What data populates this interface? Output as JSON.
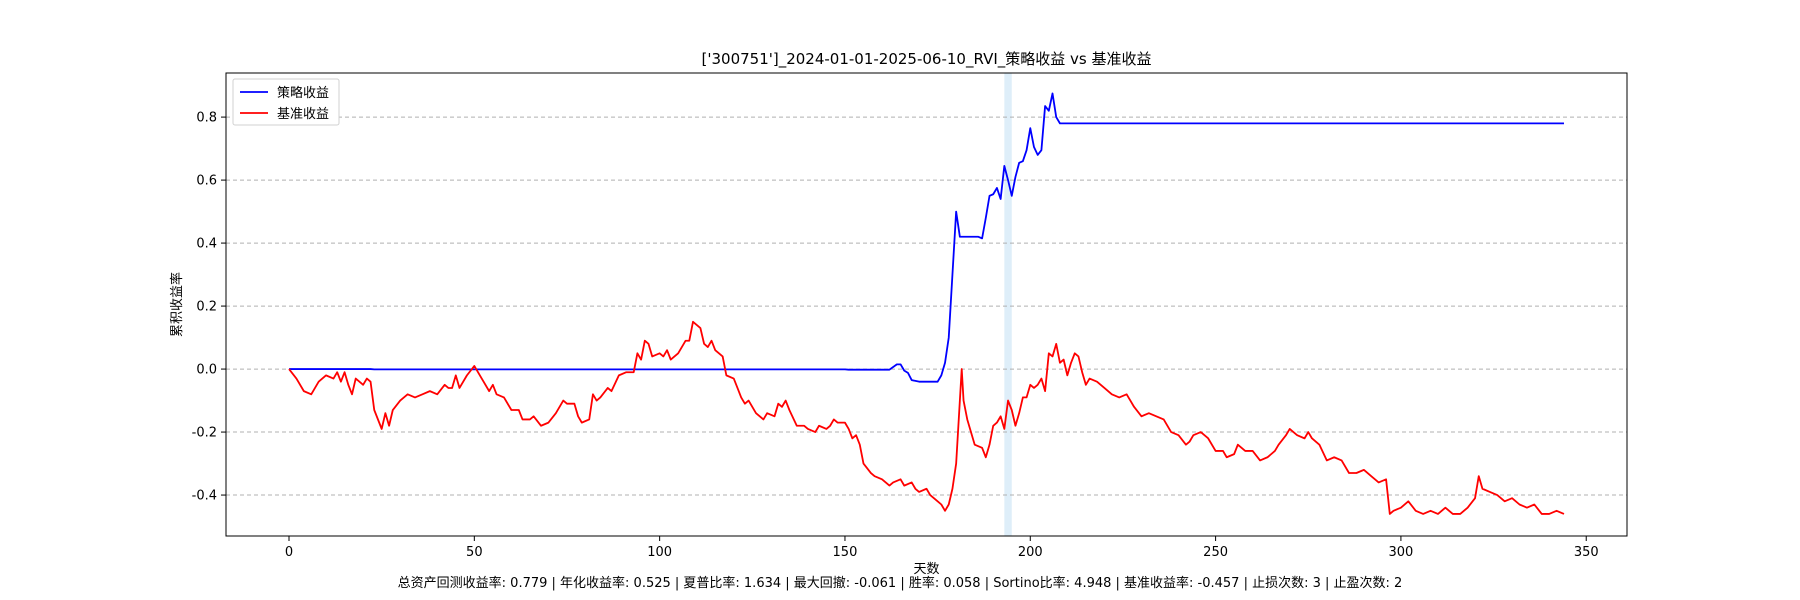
{
  "chart_data": {
    "type": "line",
    "title": "['300751']_2024-01-01-2025-06-10_RVI_策略收益 vs 基准收益",
    "xlabel": "天数",
    "ylabel": "累积收益率",
    "xlim": [
      -17,
      361
    ],
    "ylim": [
      -0.53,
      0.94
    ],
    "xticks": [
      0,
      50,
      100,
      150,
      200,
      250,
      300,
      350
    ],
    "yticks": [
      -0.4,
      -0.2,
      0.0,
      0.2,
      0.4,
      0.6,
      0.8
    ],
    "ytick_labels": [
      "-0.4",
      "-0.2",
      "0.0",
      "0.2",
      "0.4",
      "0.6",
      "0.8"
    ],
    "grid": "y-dashed",
    "legend": "upper-left",
    "highlight_band": {
      "x_start": 193,
      "x_end": 195,
      "color": "#d6eaf8"
    },
    "series": [
      {
        "name": "策略收益",
        "color": "#0000ff",
        "points": [
          [
            0,
            0
          ],
          [
            22,
            0
          ],
          [
            23,
            -0.001
          ],
          [
            150,
            -0.001
          ],
          [
            151,
            -0.002
          ],
          [
            162,
            -0.002
          ],
          [
            164,
            0.015
          ],
          [
            165,
            0.015
          ],
          [
            166,
            -0.005
          ],
          [
            167,
            -0.012
          ],
          [
            168,
            -0.035
          ],
          [
            170,
            -0.04
          ],
          [
            174,
            -0.04
          ],
          [
            175,
            -0.04
          ],
          [
            176,
            -0.02
          ],
          [
            177,
            0.02
          ],
          [
            178,
            0.1
          ],
          [
            179,
            0.3
          ],
          [
            180,
            0.5
          ],
          [
            181,
            0.42
          ],
          [
            186,
            0.42
          ],
          [
            187,
            0.415
          ],
          [
            188,
            0.48
          ],
          [
            189,
            0.55
          ],
          [
            190,
            0.555
          ],
          [
            191,
            0.575
          ],
          [
            192,
            0.54
          ],
          [
            193,
            0.645
          ],
          [
            194,
            0.6
          ],
          [
            195,
            0.55
          ],
          [
            196,
            0.61
          ],
          [
            197,
            0.655
          ],
          [
            198,
            0.66
          ],
          [
            199,
            0.695
          ],
          [
            200,
            0.765
          ],
          [
            201,
            0.705
          ],
          [
            202,
            0.68
          ],
          [
            203,
            0.695
          ],
          [
            204,
            0.835
          ],
          [
            205,
            0.82
          ],
          [
            206,
            0.875
          ],
          [
            207,
            0.8
          ],
          [
            208,
            0.78
          ],
          [
            344,
            0.78
          ]
        ]
      },
      {
        "name": "基准收益",
        "color": "#ff0000",
        "points": [
          [
            0,
            0
          ],
          [
            2,
            -0.03
          ],
          [
            4,
            -0.07
          ],
          [
            6,
            -0.08
          ],
          [
            8,
            -0.04
          ],
          [
            10,
            -0.02
          ],
          [
            12,
            -0.03
          ],
          [
            13,
            -0.01
          ],
          [
            14,
            -0.04
          ],
          [
            15,
            -0.01
          ],
          [
            16,
            -0.05
          ],
          [
            17,
            -0.08
          ],
          [
            18,
            -0.03
          ],
          [
            20,
            -0.05
          ],
          [
            21,
            -0.03
          ],
          [
            22,
            -0.04
          ],
          [
            23,
            -0.13
          ],
          [
            25,
            -0.19
          ],
          [
            26,
            -0.14
          ],
          [
            27,
            -0.18
          ],
          [
            28,
            -0.13
          ],
          [
            30,
            -0.1
          ],
          [
            32,
            -0.08
          ],
          [
            34,
            -0.09
          ],
          [
            36,
            -0.08
          ],
          [
            38,
            -0.07
          ],
          [
            40,
            -0.08
          ],
          [
            42,
            -0.05
          ],
          [
            43,
            -0.06
          ],
          [
            44,
            -0.06
          ],
          [
            45,
            -0.02
          ],
          [
            46,
            -0.06
          ],
          [
            48,
            -0.02
          ],
          [
            50,
            0.01
          ],
          [
            52,
            -0.03
          ],
          [
            54,
            -0.07
          ],
          [
            55,
            -0.05
          ],
          [
            56,
            -0.08
          ],
          [
            58,
            -0.09
          ],
          [
            60,
            -0.13
          ],
          [
            62,
            -0.13
          ],
          [
            63,
            -0.16
          ],
          [
            65,
            -0.16
          ],
          [
            66,
            -0.15
          ],
          [
            68,
            -0.18
          ],
          [
            70,
            -0.17
          ],
          [
            72,
            -0.14
          ],
          [
            74,
            -0.1
          ],
          [
            75,
            -0.11
          ],
          [
            77,
            -0.11
          ],
          [
            78,
            -0.15
          ],
          [
            79,
            -0.17
          ],
          [
            81,
            -0.16
          ],
          [
            82,
            -0.08
          ],
          [
            83,
            -0.1
          ],
          [
            84,
            -0.09
          ],
          [
            86,
            -0.06
          ],
          [
            87,
            -0.07
          ],
          [
            89,
            -0.02
          ],
          [
            91,
            -0.01
          ],
          [
            93,
            -0.01
          ],
          [
            94,
            0.05
          ],
          [
            95,
            0.03
          ],
          [
            96,
            0.09
          ],
          [
            97,
            0.08
          ],
          [
            98,
            0.04
          ],
          [
            100,
            0.05
          ],
          [
            101,
            0.04
          ],
          [
            102,
            0.06
          ],
          [
            103,
            0.03
          ],
          [
            105,
            0.05
          ],
          [
            107,
            0.09
          ],
          [
            108,
            0.09
          ],
          [
            109,
            0.15
          ],
          [
            110,
            0.14
          ],
          [
            111,
            0.13
          ],
          [
            112,
            0.08
          ],
          [
            113,
            0.07
          ],
          [
            114,
            0.09
          ],
          [
            115,
            0.06
          ],
          [
            117,
            0.04
          ],
          [
            118,
            -0.02
          ],
          [
            120,
            -0.03
          ],
          [
            121,
            -0.06
          ],
          [
            122,
            -0.09
          ],
          [
            123,
            -0.11
          ],
          [
            124,
            -0.1
          ],
          [
            126,
            -0.14
          ],
          [
            128,
            -0.16
          ],
          [
            129,
            -0.14
          ],
          [
            131,
            -0.15
          ],
          [
            132,
            -0.11
          ],
          [
            133,
            -0.12
          ],
          [
            134,
            -0.1
          ],
          [
            135,
            -0.13
          ],
          [
            137,
            -0.18
          ],
          [
            139,
            -0.18
          ],
          [
            140,
            -0.19
          ],
          [
            142,
            -0.2
          ],
          [
            143,
            -0.18
          ],
          [
            145,
            -0.19
          ],
          [
            146,
            -0.18
          ],
          [
            147,
            -0.16
          ],
          [
            148,
            -0.17
          ],
          [
            150,
            -0.17
          ],
          [
            151,
            -0.19
          ],
          [
            152,
            -0.22
          ],
          [
            153,
            -0.21
          ],
          [
            154,
            -0.24
          ],
          [
            155,
            -0.3
          ],
          [
            157,
            -0.33
          ],
          [
            158,
            -0.34
          ],
          [
            160,
            -0.35
          ],
          [
            161,
            -0.36
          ],
          [
            162,
            -0.37
          ],
          [
            163,
            -0.36
          ],
          [
            165,
            -0.35
          ],
          [
            166,
            -0.37
          ],
          [
            168,
            -0.36
          ],
          [
            169,
            -0.38
          ],
          [
            170,
            -0.39
          ],
          [
            172,
            -0.38
          ],
          [
            173,
            -0.4
          ],
          [
            175,
            -0.42
          ],
          [
            176,
            -0.43
          ],
          [
            177,
            -0.45
          ],
          [
            178,
            -0.43
          ],
          [
            179,
            -0.38
          ],
          [
            180,
            -0.3
          ],
          [
            181,
            -0.1
          ],
          [
            181.5,
            0
          ],
          [
            182,
            -0.1
          ],
          [
            183,
            -0.16
          ],
          [
            185,
            -0.24
          ],
          [
            187,
            -0.25
          ],
          [
            188,
            -0.28
          ],
          [
            189,
            -0.24
          ],
          [
            190,
            -0.18
          ],
          [
            191,
            -0.17
          ],
          [
            192,
            -0.15
          ],
          [
            193,
            -0.19
          ],
          [
            194,
            -0.1
          ],
          [
            195,
            -0.13
          ],
          [
            196,
            -0.18
          ],
          [
            197,
            -0.14
          ],
          [
            198,
            -0.09
          ],
          [
            199,
            -0.09
          ],
          [
            200,
            -0.05
          ],
          [
            201,
            -0.06
          ],
          [
            202,
            -0.05
          ],
          [
            203,
            -0.03
          ],
          [
            204,
            -0.07
          ],
          [
            205,
            0.05
          ],
          [
            206,
            0.04
          ],
          [
            207,
            0.08
          ],
          [
            208,
            0.02
          ],
          [
            209,
            0.03
          ],
          [
            210,
            -0.02
          ],
          [
            211,
            0.02
          ],
          [
            212,
            0.05
          ],
          [
            213,
            0.04
          ],
          [
            214,
            -0.01
          ],
          [
            215,
            -0.05
          ],
          [
            216,
            -0.03
          ],
          [
            218,
            -0.04
          ],
          [
            220,
            -0.06
          ],
          [
            222,
            -0.08
          ],
          [
            224,
            -0.09
          ],
          [
            226,
            -0.08
          ],
          [
            227,
            -0.1
          ],
          [
            228,
            -0.12
          ],
          [
            230,
            -0.15
          ],
          [
            232,
            -0.14
          ],
          [
            234,
            -0.15
          ],
          [
            236,
            -0.16
          ],
          [
            238,
            -0.2
          ],
          [
            240,
            -0.21
          ],
          [
            242,
            -0.24
          ],
          [
            243,
            -0.23
          ],
          [
            244,
            -0.21
          ],
          [
            246,
            -0.2
          ],
          [
            248,
            -0.22
          ],
          [
            250,
            -0.26
          ],
          [
            252,
            -0.26
          ],
          [
            253,
            -0.28
          ],
          [
            255,
            -0.27
          ],
          [
            256,
            -0.24
          ],
          [
            258,
            -0.26
          ],
          [
            260,
            -0.26
          ],
          [
            262,
            -0.29
          ],
          [
            264,
            -0.28
          ],
          [
            266,
            -0.26
          ],
          [
            267,
            -0.24
          ],
          [
            269,
            -0.21
          ],
          [
            270,
            -0.19
          ],
          [
            272,
            -0.21
          ],
          [
            274,
            -0.22
          ],
          [
            275,
            -0.2
          ],
          [
            276,
            -0.22
          ],
          [
            278,
            -0.24
          ],
          [
            280,
            -0.29
          ],
          [
            282,
            -0.28
          ],
          [
            284,
            -0.29
          ],
          [
            286,
            -0.33
          ],
          [
            288,
            -0.33
          ],
          [
            290,
            -0.32
          ],
          [
            292,
            -0.34
          ],
          [
            294,
            -0.36
          ],
          [
            296,
            -0.35
          ],
          [
            297,
            -0.46
          ],
          [
            298,
            -0.45
          ],
          [
            300,
            -0.44
          ],
          [
            302,
            -0.42
          ],
          [
            304,
            -0.45
          ],
          [
            306,
            -0.46
          ],
          [
            308,
            -0.45
          ],
          [
            310,
            -0.46
          ],
          [
            312,
            -0.44
          ],
          [
            314,
            -0.46
          ],
          [
            316,
            -0.46
          ],
          [
            318,
            -0.44
          ],
          [
            320,
            -0.41
          ],
          [
            321,
            -0.34
          ],
          [
            322,
            -0.38
          ],
          [
            324,
            -0.39
          ],
          [
            326,
            -0.4
          ],
          [
            328,
            -0.42
          ],
          [
            330,
            -0.41
          ],
          [
            332,
            -0.43
          ],
          [
            334,
            -0.44
          ],
          [
            336,
            -0.43
          ],
          [
            338,
            -0.46
          ],
          [
            340,
            -0.46
          ],
          [
            342,
            -0.45
          ],
          [
            344,
            -0.46
          ]
        ]
      }
    ]
  },
  "footer_text": "总资产回测收益率: 0.779 | 年化收益率: 0.525 | 夏普比率: 1.634 | 最大回撤: -0.061 | 胜率: 0.058 | Sortino比率: 4.948 | 基准收益率: -0.457 | 止损次数: 3 | 止盈次数: 2"
}
